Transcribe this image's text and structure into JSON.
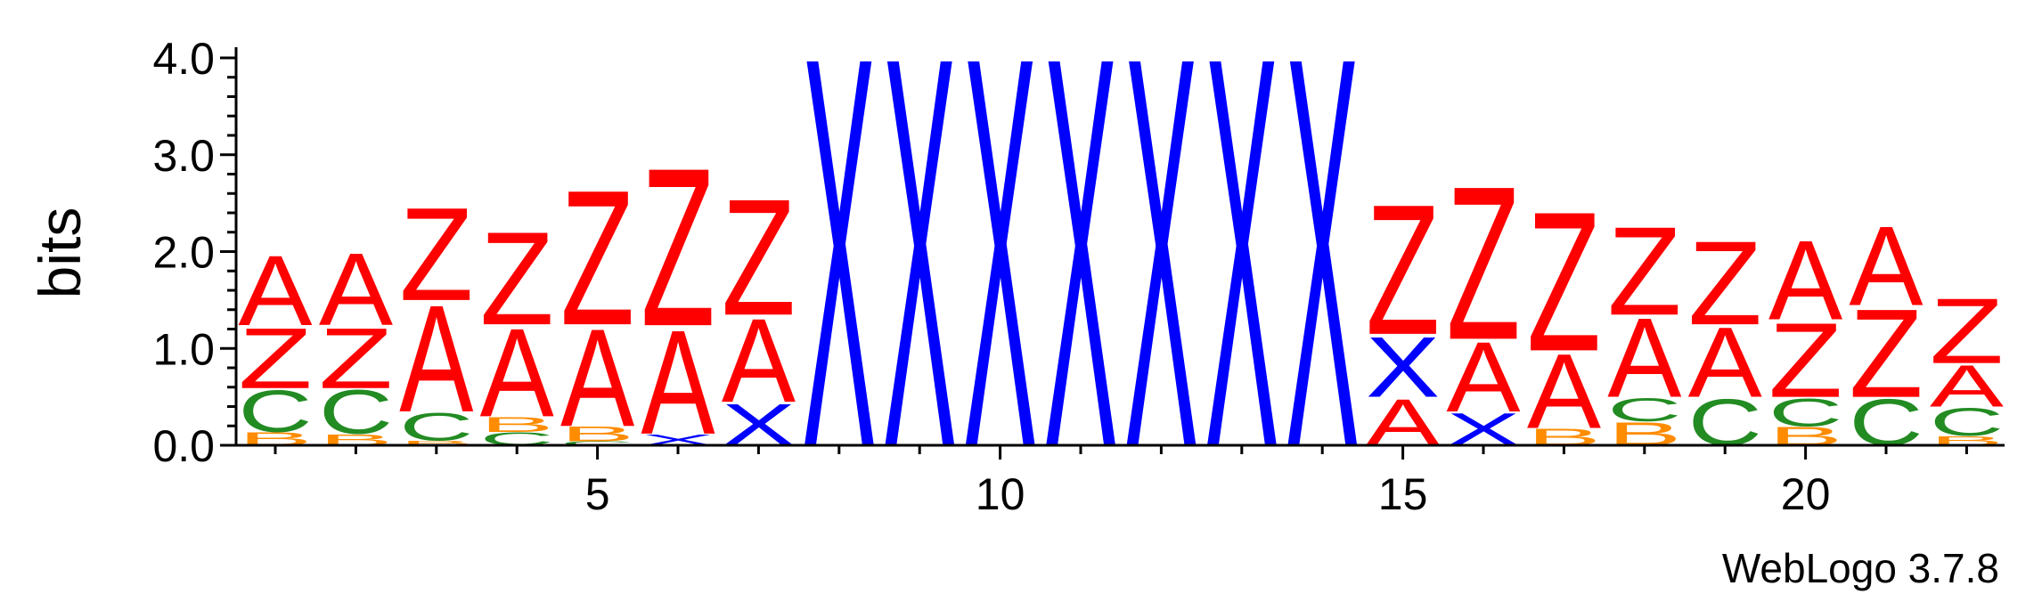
{
  "chart_data": {
    "type": "sequence-logo",
    "ylabel": "bits",
    "ylim": [
      0,
      4.0
    ],
    "y_ticks": [
      "0.0",
      "1.0",
      "2.0",
      "3.0",
      "4.0"
    ],
    "x_ticks": [
      5,
      10,
      15,
      20
    ],
    "credit": "WebLogo 3.7.8",
    "colors": {
      "A": "#ff0000",
      "Z": "#ff0000",
      "X": "#0000ff",
      "C": "#228b22",
      "B": "#ff8c00"
    },
    "positions": [
      {
        "pos": 1,
        "stack": [
          {
            "s": "B",
            "h": 0.14
          },
          {
            "s": "C",
            "h": 0.45
          },
          {
            "s": "Z",
            "h": 0.65
          },
          {
            "s": "A",
            "h": 0.75
          }
        ]
      },
      {
        "pos": 2,
        "stack": [
          {
            "s": "B",
            "h": 0.12
          },
          {
            "s": "C",
            "h": 0.47
          },
          {
            "s": "Z",
            "h": 0.65
          },
          {
            "s": "A",
            "h": 0.78
          }
        ]
      },
      {
        "pos": 3,
        "stack": [
          {
            "s": "B",
            "h": 0.05
          },
          {
            "s": "C",
            "h": 0.3
          },
          {
            "s": "A",
            "h": 1.15
          },
          {
            "s": "Z",
            "h": 1.0
          }
        ]
      },
      {
        "pos": 4,
        "stack": [
          {
            "s": "C",
            "h": 0.14
          },
          {
            "s": "B",
            "h": 0.16
          },
          {
            "s": "A",
            "h": 0.95
          },
          {
            "s": "Z",
            "h": 1.0
          }
        ]
      },
      {
        "pos": 5,
        "stack": [
          {
            "s": "C",
            "h": 0.04
          },
          {
            "s": "B",
            "h": 0.16
          },
          {
            "s": "A",
            "h": 1.05
          },
          {
            "s": "Z",
            "h": 1.45
          }
        ]
      },
      {
        "pos": 6,
        "stack": [
          {
            "s": "X",
            "h": 0.12
          },
          {
            "s": "A",
            "h": 1.12
          },
          {
            "s": "Z",
            "h": 1.7
          }
        ]
      },
      {
        "pos": 7,
        "stack": [
          {
            "s": "X",
            "h": 0.45
          },
          {
            "s": "A",
            "h": 0.9
          },
          {
            "s": "Z",
            "h": 1.25
          }
        ]
      },
      {
        "pos": 8,
        "stack": [
          {
            "s": "X",
            "h": 4.2
          }
        ]
      },
      {
        "pos": 9,
        "stack": [
          {
            "s": "X",
            "h": 4.2
          }
        ]
      },
      {
        "pos": 10,
        "stack": [
          {
            "s": "X",
            "h": 4.2
          }
        ]
      },
      {
        "pos": 11,
        "stack": [
          {
            "s": "X",
            "h": 4.2
          }
        ]
      },
      {
        "pos": 12,
        "stack": [
          {
            "s": "X",
            "h": 4.2
          }
        ]
      },
      {
        "pos": 13,
        "stack": [
          {
            "s": "X",
            "h": 4.2
          }
        ]
      },
      {
        "pos": 14,
        "stack": [
          {
            "s": "X",
            "h": 4.2
          }
        ]
      },
      {
        "pos": 15,
        "stack": [
          {
            "s": "A",
            "h": 0.5
          },
          {
            "s": "X",
            "h": 0.65
          },
          {
            "s": "Z",
            "h": 1.4
          }
        ]
      },
      {
        "pos": 16,
        "stack": [
          {
            "s": "X",
            "h": 0.35
          },
          {
            "s": "A",
            "h": 0.75
          },
          {
            "s": "Z",
            "h": 1.65
          }
        ]
      },
      {
        "pos": 17,
        "stack": [
          {
            "s": "B",
            "h": 0.18
          },
          {
            "s": "A",
            "h": 0.8
          },
          {
            "s": "Z",
            "h": 1.5
          }
        ]
      },
      {
        "pos": 18,
        "stack": [
          {
            "s": "B",
            "h": 0.25
          },
          {
            "s": "C",
            "h": 0.25
          },
          {
            "s": "A",
            "h": 0.85
          },
          {
            "s": "Z",
            "h": 0.95
          }
        ]
      },
      {
        "pos": 19,
        "stack": [
          {
            "s": "C",
            "h": 0.5
          },
          {
            "s": "A",
            "h": 0.75
          },
          {
            "s": "Z",
            "h": 0.9
          }
        ]
      },
      {
        "pos": 20,
        "stack": [
          {
            "s": "B",
            "h": 0.2
          },
          {
            "s": "C",
            "h": 0.3
          },
          {
            "s": "Z",
            "h": 0.8
          },
          {
            "s": "A",
            "h": 0.85
          }
        ]
      },
      {
        "pos": 21,
        "stack": [
          {
            "s": "C",
            "h": 0.5
          },
          {
            "s": "Z",
            "h": 0.95
          },
          {
            "s": "A",
            "h": 0.85
          }
        ]
      },
      {
        "pos": 22,
        "stack": [
          {
            "s": "B",
            "h": 0.1
          },
          {
            "s": "C",
            "h": 0.3
          },
          {
            "s": "A",
            "h": 0.45
          },
          {
            "s": "Z",
            "h": 0.7
          }
        ]
      }
    ]
  }
}
